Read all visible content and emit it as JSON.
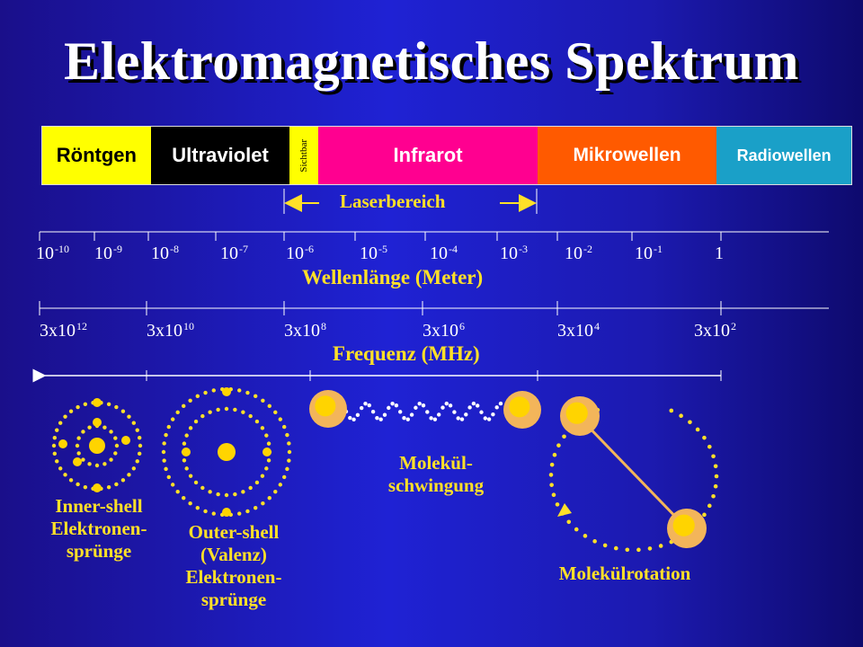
{
  "title": "Elektromagnetisches Spektrum",
  "band": [
    {
      "label": "Röntgen",
      "bg": "#ffff00",
      "fg": "#000000"
    },
    {
      "label": "Ultraviolet",
      "bg": "#000000",
      "fg": "#ffffff"
    },
    {
      "label": "Sichtbar",
      "bg": "#ffff00",
      "fg": "#000000"
    },
    {
      "label": "Infrarot",
      "bg": "#ff0090",
      "fg": "#ffffff"
    },
    {
      "label": "Mikrowellen",
      "bg": "#ff5a00",
      "fg": "#ffffff"
    },
    {
      "label": "Radiowellen",
      "bg": "#1aa0c8",
      "fg": "#ffffff"
    }
  ],
  "laser_label": "Laserbereich",
  "wavelength": {
    "axis_label": "Wellenlänge (Meter)",
    "ticks": [
      {
        "base": "10",
        "exp": "-10"
      },
      {
        "base": "10",
        "exp": "-9"
      },
      {
        "base": "10",
        "exp": "-8"
      },
      {
        "base": "10",
        "exp": "-7"
      },
      {
        "base": "10",
        "exp": "-6"
      },
      {
        "base": "10",
        "exp": "-5"
      },
      {
        "base": "10",
        "exp": "-4"
      },
      {
        "base": "10",
        "exp": "-3"
      },
      {
        "base": "10",
        "exp": "-2"
      },
      {
        "base": "10",
        "exp": "-1"
      },
      {
        "base": "1",
        "exp": ""
      }
    ]
  },
  "frequency": {
    "axis_label": "Frequenz (MHz)",
    "ticks": [
      {
        "base": "3x10",
        "exp": "12"
      },
      {
        "base": "3x10",
        "exp": "10"
      },
      {
        "base": "3x10",
        "exp": "8"
      },
      {
        "base": "3x10",
        "exp": "6"
      },
      {
        "base": "3x10",
        "exp": "4"
      },
      {
        "base": "3x10",
        "exp": "2"
      }
    ]
  },
  "captions": {
    "inner_shell": [
      "Inner-shell",
      "Elektronen-",
      "sprünge"
    ],
    "outer_shell": [
      "Outer-shell",
      "(Valenz)",
      "Elektronen-",
      "sprünge"
    ],
    "vibration": [
      "Molekül-",
      "schwingung"
    ],
    "rotation": [
      "Molekülrotation"
    ]
  },
  "colors": {
    "accent_yellow": "#ffe028",
    "atom_nucleus": "#ffd400",
    "atom_halo": "#f3b55a"
  }
}
